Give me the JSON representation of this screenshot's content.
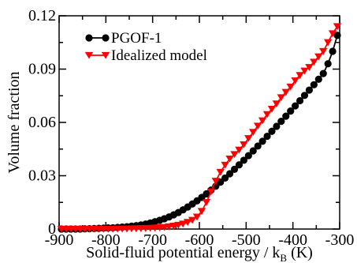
{
  "chart_data": {
    "type": "line",
    "xlabel": "Solid-fluid potential energy / k",
    "xlabel_subscript": "B",
    "xlabel_unit": " (K)",
    "ylabel": "Volume fraction",
    "xlim": [
      -900,
      -300
    ],
    "ylim": [
      0,
      0.12
    ],
    "xticks": [
      -900,
      -800,
      -700,
      -600,
      -500,
      -400,
      -300
    ],
    "xtick_labels": [
      "-900",
      "-800",
      "-700",
      "-600",
      "-500",
      "-400",
      "-300"
    ],
    "yticks": [
      0,
      0.03,
      0.06,
      0.09,
      0.12
    ],
    "ytick_labels": [
      "0",
      "0.03",
      "0.06",
      "0.09",
      "0.12"
    ],
    "legend_position": "top-left",
    "series": [
      {
        "name": "PGOF-1",
        "color": "#000000",
        "marker": "circle",
        "x": [
          -895,
          -885,
          -875,
          -865,
          -855,
          -845,
          -835,
          -825,
          -815,
          -805,
          -795,
          -785,
          -775,
          -765,
          -755,
          -745,
          -735,
          -725,
          -715,
          -705,
          -695,
          -685,
          -675,
          -665,
          -655,
          -645,
          -635,
          -625,
          -615,
          -605,
          -595,
          -585,
          -575,
          -565,
          -555,
          -545,
          -535,
          -525,
          -515,
          -505,
          -495,
          -485,
          -475,
          -465,
          -455,
          -445,
          -435,
          -425,
          -415,
          -405,
          -395,
          -385,
          -375,
          -365,
          -355,
          -345,
          -335,
          -325,
          -315,
          -305
        ],
        "y": [
          0.0,
          0.0,
          0.0,
          0.0,
          0.0,
          0.0001,
          0.0002,
          0.0003,
          0.0004,
          0.0005,
          0.0006,
          0.0007,
          0.0009,
          0.0011,
          0.0013,
          0.0016,
          0.0019,
          0.0023,
          0.0028,
          0.0034,
          0.0041,
          0.0049,
          0.0058,
          0.0068,
          0.008,
          0.0093,
          0.0108,
          0.0124,
          0.0141,
          0.0159,
          0.0178,
          0.0198,
          0.0219,
          0.0241,
          0.0264,
          0.0287,
          0.0311,
          0.0336,
          0.0361,
          0.0387,
          0.0413,
          0.044,
          0.0467,
          0.0494,
          0.0522,
          0.055,
          0.0578,
          0.0606,
          0.0635,
          0.0664,
          0.0693,
          0.0722,
          0.0752,
          0.0782,
          0.0812,
          0.0843,
          0.0875,
          0.093,
          0.1,
          0.109
        ]
      },
      {
        "name": "Idealized model",
        "color": "#ff0000",
        "marker": "triangle-down",
        "x": [
          -895,
          -885,
          -875,
          -865,
          -855,
          -845,
          -835,
          -825,
          -815,
          -805,
          -795,
          -785,
          -775,
          -765,
          -755,
          -745,
          -735,
          -725,
          -715,
          -705,
          -695,
          -685,
          -675,
          -665,
          -655,
          -645,
          -635,
          -625,
          -615,
          -605,
          -595,
          -585,
          -575,
          -565,
          -555,
          -545,
          -535,
          -525,
          -515,
          -505,
          -495,
          -485,
          -475,
          -465,
          -455,
          -445,
          -435,
          -425,
          -415,
          -405,
          -395,
          -385,
          -375,
          -365,
          -355,
          -345,
          -335,
          -325,
          -315,
          -305
        ],
        "y": [
          0.0,
          0.0,
          0.0,
          0.0,
          0.0,
          0.0,
          0.0,
          0.0,
          0.0,
          0.0,
          0.0,
          0.0,
          0.0001,
          0.0001,
          0.0001,
          0.0002,
          0.0002,
          0.0003,
          0.0004,
          0.0005,
          0.0006,
          0.0008,
          0.001,
          0.0013,
          0.0017,
          0.0022,
          0.0029,
          0.0038,
          0.005,
          0.0068,
          0.01,
          0.015,
          0.021,
          0.027,
          0.032,
          0.036,
          0.0395,
          0.042,
          0.0445,
          0.0475,
          0.051,
          0.0545,
          0.058,
          0.061,
          0.0645,
          0.0675,
          0.0705,
          0.074,
          0.077,
          0.08,
          0.0835,
          0.0865,
          0.089,
          0.091,
          0.094,
          0.097,
          0.1,
          0.105,
          0.11,
          0.114
        ]
      }
    ]
  }
}
